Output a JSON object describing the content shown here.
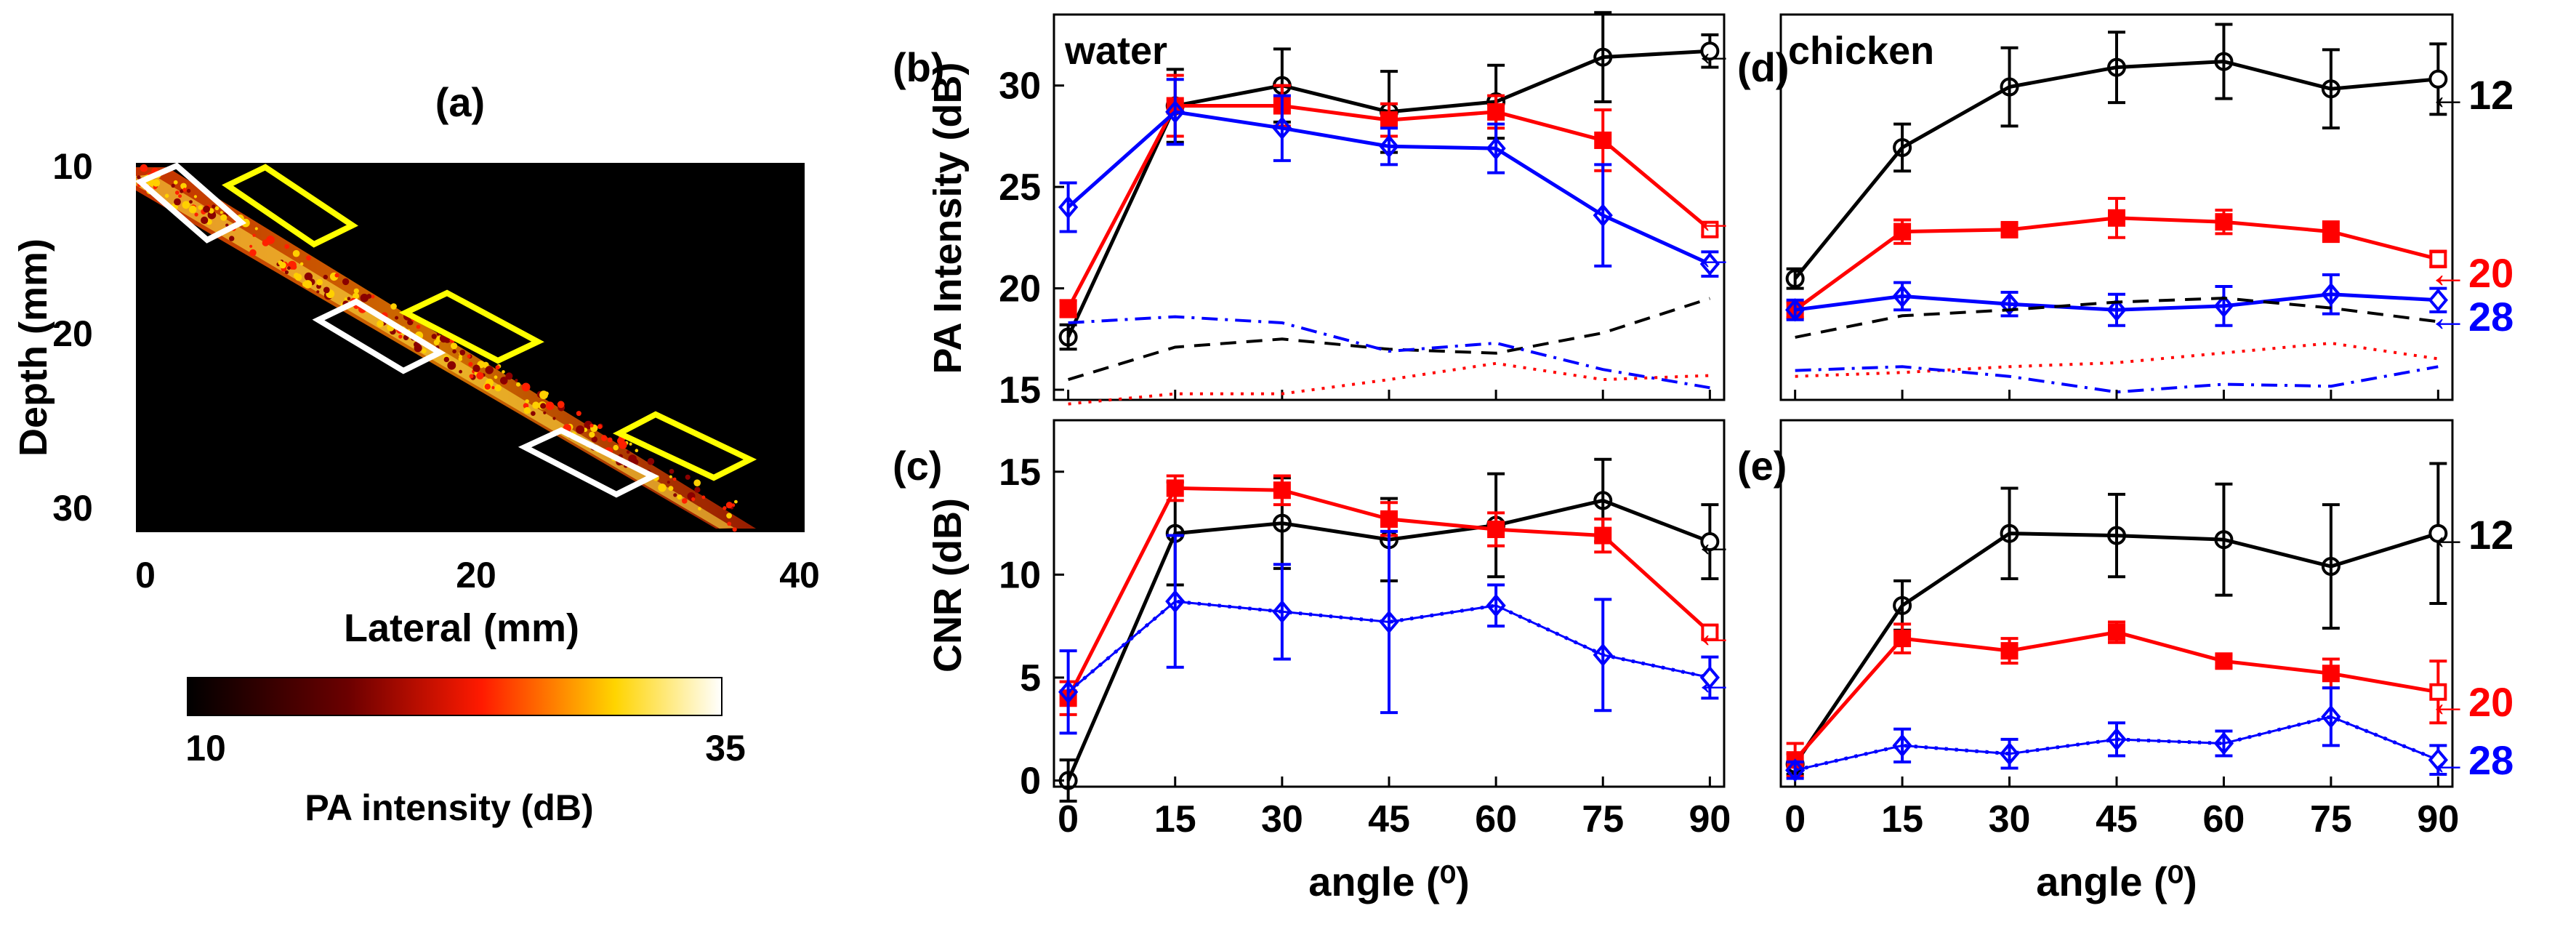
{
  "figure": {
    "panel_a": {
      "label": "(a)",
      "ylabel": "Depth (mm)",
      "xlabel": "Lateral (mm)",
      "xticks": [
        "0",
        "20",
        "40"
      ],
      "yticks": [
        "10",
        "20",
        "30"
      ],
      "colorbar": {
        "label": "PA intensity (dB)",
        "min_label": "10",
        "max_label": "35"
      }
    }
  },
  "chart_data": [
    {
      "panel": "(b)",
      "type": "line",
      "title_text": "water",
      "xlabel": "",
      "ylabel": "PA Intensity (dB)",
      "x": [
        0,
        15,
        30,
        45,
        60,
        75,
        90
      ],
      "xlim": [
        -2,
        92
      ],
      "ylim": [
        14.5,
        33.5
      ],
      "yticks": [
        15,
        20,
        25,
        30
      ],
      "xticks": [],
      "series": [
        {
          "name": "black",
          "color": "#000000",
          "marker": "circle",
          "dash": "solid",
          "values": [
            17.6,
            29.0,
            30.0,
            28.7,
            29.2,
            31.4,
            31.7
          ],
          "errors": [
            0.6,
            1.8,
            1.8,
            2.0,
            1.8,
            2.2,
            0.8
          ]
        },
        {
          "name": "red",
          "color": "#ff0000",
          "marker": "square",
          "dash": "solid",
          "values": [
            19.0,
            29.0,
            29.0,
            28.3,
            28.7,
            27.3,
            22.9
          ],
          "errors": [
            0.4,
            1.5,
            1.0,
            0.8,
            0.8,
            1.5,
            0.3
          ]
        },
        {
          "name": "blue",
          "color": "#0000ff",
          "marker": "diamond",
          "dash": "solid",
          "values": [
            24.0,
            28.7,
            27.9,
            27.0,
            26.9,
            23.6,
            21.2
          ],
          "errors": [
            1.2,
            1.6,
            1.6,
            0.9,
            1.2,
            2.5,
            0.6
          ]
        },
        {
          "name": "black-dashed",
          "color": "#000000",
          "marker": "none",
          "dash": "dashed",
          "values": [
            15.5,
            17.1,
            17.5,
            17.0,
            16.8,
            17.8,
            19.5
          ]
        },
        {
          "name": "blue-dashdot",
          "color": "#0000ff",
          "marker": "none",
          "dash": "dashdot",
          "values": [
            18.3,
            18.6,
            18.3,
            16.9,
            17.3,
            16.0,
            15.1
          ]
        },
        {
          "name": "red-dotted",
          "color": "#ff0000",
          "marker": "none",
          "dash": "dotted",
          "values": [
            14.3,
            14.8,
            14.8,
            15.5,
            16.3,
            15.5,
            15.7
          ]
        }
      ],
      "annotations": [
        "←",
        "←",
        "←"
      ]
    },
    {
      "panel": "(c)",
      "type": "line",
      "title_text": "",
      "xlabel": "angle (⁰)",
      "ylabel": "CNR (dB)",
      "x": [
        0,
        15,
        30,
        45,
        60,
        75,
        90
      ],
      "xlim": [
        -2,
        92
      ],
      "ylim": [
        -0.3,
        17.5
      ],
      "yticks": [
        0,
        5,
        10,
        15
      ],
      "xticks": [
        "0",
        "15",
        "30",
        "45",
        "60",
        "75",
        "90"
      ],
      "series": [
        {
          "name": "black",
          "color": "#000000",
          "marker": "circle",
          "dash": "solid",
          "values": [
            0.0,
            12.0,
            12.5,
            11.7,
            12.4,
            13.6,
            11.6
          ],
          "errors": [
            1.0,
            2.5,
            2.2,
            2.0,
            2.5,
            2.0,
            1.8
          ]
        },
        {
          "name": "red",
          "color": "#ff0000",
          "marker": "square",
          "dash": "solid",
          "values": [
            4.0,
            14.2,
            14.1,
            12.7,
            12.2,
            11.9,
            7.2
          ],
          "errors": [
            0.8,
            0.6,
            0.7,
            0.8,
            0.8,
            0.8,
            0.3
          ]
        },
        {
          "name": "blue",
          "color": "#0000ff",
          "marker": "diamond",
          "dash": "dotted",
          "values": [
            4.3,
            8.7,
            8.2,
            7.7,
            8.5,
            6.1,
            5.0
          ],
          "errors": [
            2.0,
            3.2,
            2.3,
            4.4,
            1.0,
            2.7,
            1.0
          ]
        }
      ],
      "annotations": [
        "←",
        "←",
        "←"
      ]
    },
    {
      "panel": "(d)",
      "type": "line",
      "title_text": "chicken",
      "xlabel": "",
      "ylabel": "",
      "x": [
        0,
        15,
        30,
        45,
        60,
        75,
        90
      ],
      "xlim": [
        -2,
        92
      ],
      "ylim": [
        13.8,
        33.5
      ],
      "yticks": [],
      "xticks": [],
      "series": [
        {
          "name": "black",
          "color": "#000000",
          "marker": "circle",
          "dash": "solid",
          "values": [
            20.0,
            26.7,
            29.8,
            30.8,
            31.1,
            29.7,
            30.2
          ],
          "errors": [
            0.5,
            1.2,
            2.0,
            1.8,
            1.9,
            2.0,
            1.8
          ]
        },
        {
          "name": "red",
          "color": "#ff0000",
          "marker": "square",
          "dash": "solid",
          "values": [
            18.4,
            22.4,
            22.5,
            23.1,
            22.9,
            22.4,
            21.0
          ],
          "errors": [
            0.4,
            0.6,
            0.3,
            1.0,
            0.6,
            0.5,
            0.4
          ]
        },
        {
          "name": "blue",
          "color": "#0000ff",
          "marker": "diamond",
          "dash": "solid",
          "values": [
            18.4,
            19.1,
            18.7,
            18.4,
            18.6,
            19.2,
            18.9
          ],
          "errors": [
            0.5,
            0.7,
            0.6,
            0.8,
            1.0,
            1.0,
            0.6
          ]
        },
        {
          "name": "black-dashed",
          "color": "#000000",
          "marker": "none",
          "dash": "dashed",
          "values": [
            17.0,
            18.1,
            18.4,
            18.8,
            19.0,
            18.5,
            17.8
          ]
        },
        {
          "name": "red-dotted",
          "color": "#ff0000",
          "marker": "none",
          "dash": "dotted",
          "values": [
            15.0,
            15.2,
            15.5,
            15.7,
            16.2,
            16.7,
            15.9
          ]
        },
        {
          "name": "blue-dashdot",
          "color": "#0000ff",
          "marker": "none",
          "dash": "dashdot",
          "values": [
            15.3,
            15.5,
            15.0,
            14.2,
            14.6,
            14.5,
            15.5
          ]
        }
      ],
      "annotations": [
        "←12",
        "←20",
        "←28"
      ]
    },
    {
      "panel": "(e)",
      "type": "line",
      "title_text": "",
      "xlabel": "angle (⁰)",
      "ylabel": "",
      "x": [
        0,
        15,
        30,
        45,
        60,
        75,
        90
      ],
      "xlim": [
        -2,
        92
      ],
      "ylim": [
        -0.3,
        17.5
      ],
      "yticks": [],
      "xticks": [
        "0",
        "15",
        "30",
        "45",
        "60",
        "75",
        "90"
      ],
      "series": [
        {
          "name": "black",
          "color": "#000000",
          "marker": "circle",
          "dash": "solid",
          "values": [
            0.8,
            8.5,
            12.0,
            11.9,
            11.7,
            10.4,
            12.0
          ],
          "errors": [
            0.5,
            1.2,
            2.2,
            2.0,
            2.7,
            3.0,
            3.4
          ]
        },
        {
          "name": "red",
          "color": "#ff0000",
          "marker": "square",
          "dash": "solid",
          "values": [
            1.0,
            6.9,
            6.3,
            7.2,
            5.8,
            5.2,
            4.3
          ],
          "errors": [
            0.8,
            0.7,
            0.6,
            0.5,
            0.3,
            0.7,
            1.5
          ]
        },
        {
          "name": "blue",
          "color": "#0000ff",
          "marker": "diamond",
          "dash": "dotted",
          "values": [
            0.5,
            1.7,
            1.3,
            2.0,
            1.8,
            3.1,
            1.0
          ],
          "errors": [
            0.4,
            0.8,
            0.7,
            0.8,
            0.6,
            1.4,
            0.7
          ]
        }
      ],
      "annotations": [
        "←12",
        "←20",
        "←28"
      ]
    }
  ]
}
